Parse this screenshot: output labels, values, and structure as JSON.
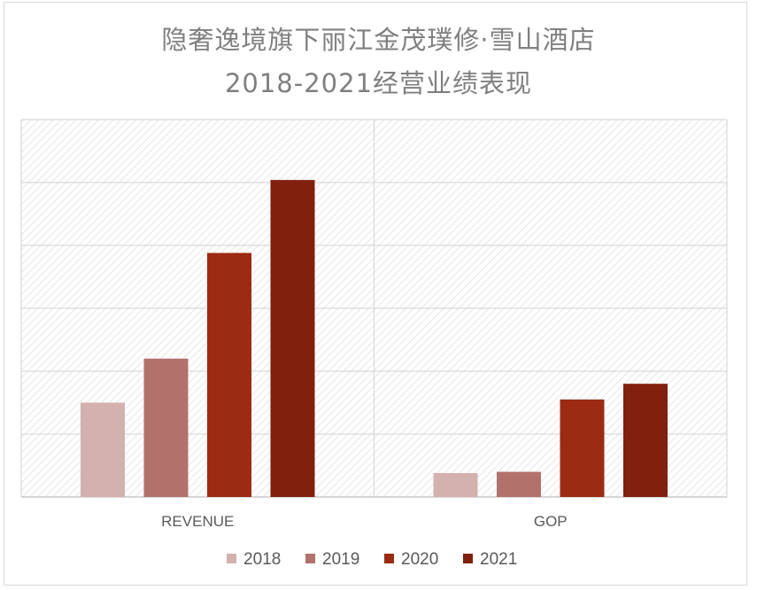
{
  "chart_data": {
    "type": "bar",
    "title_line1": "隐奢逸境旗下丽江金茂璞修·雪山酒店",
    "title_line2": "2018-2021经营业绩表现",
    "categories": [
      "REVENUE",
      "GOP"
    ],
    "series": [
      {
        "name": "2018",
        "color": "#d3b1ae",
        "values": [
          1.5,
          0.38
        ]
      },
      {
        "name": "2019",
        "color": "#b3716c",
        "values": [
          2.2,
          0.4
        ]
      },
      {
        "name": "2020",
        "color": "#9b2b13",
        "values": [
          3.88,
          1.55
        ]
      },
      {
        "name": "2021",
        "color": "#80200d",
        "values": [
          5.04,
          1.8
        ]
      }
    ],
    "ylim": [
      0,
      6
    ],
    "y_gridlines": [
      0,
      1,
      2,
      3,
      4,
      5,
      6
    ],
    "y_tick_labels_visible": false,
    "legend_position": "bottom-center"
  }
}
